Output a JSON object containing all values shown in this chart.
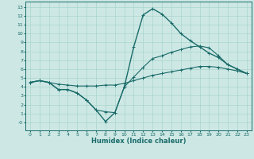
{
  "xlabel": "Humidex (Indice chaleur)",
  "bg_color": "#cde8e4",
  "line_color": "#1a6b6a",
  "grid_color": "#a8d4ce",
  "xlim": [
    -0.5,
    23.5
  ],
  "ylim": [
    -0.9,
    13.6
  ],
  "xticks": [
    0,
    1,
    2,
    3,
    4,
    5,
    6,
    7,
    8,
    9,
    10,
    11,
    12,
    13,
    14,
    15,
    16,
    17,
    18,
    19,
    20,
    21,
    22,
    23
  ],
  "yticks": [
    0,
    1,
    2,
    3,
    4,
    5,
    6,
    7,
    8,
    9,
    10,
    11,
    12,
    13
  ],
  "ytick_labels": [
    "-0",
    "1",
    "2",
    "3",
    "4",
    "5",
    "6",
    "7",
    "8",
    "9",
    "10",
    "11",
    "12",
    "13"
  ],
  "line_flat_x": [
    0,
    1,
    2,
    3,
    4,
    5,
    6,
    7,
    8,
    9,
    10,
    11,
    12,
    13,
    14,
    15,
    16,
    17,
    18,
    19,
    20,
    21,
    22,
    23
  ],
  "line_flat_y": [
    4.5,
    4.7,
    4.5,
    4.3,
    4.2,
    4.1,
    4.1,
    4.1,
    4.2,
    4.2,
    4.4,
    4.7,
    5.0,
    5.3,
    5.5,
    5.7,
    5.9,
    6.1,
    6.3,
    6.3,
    6.2,
    6.0,
    5.8,
    5.5
  ],
  "line_dip_x": [
    0,
    1,
    2,
    3,
    4,
    5,
    6,
    7,
    8,
    9,
    10,
    11,
    12,
    13,
    14,
    15,
    16,
    17,
    18,
    19,
    20,
    21,
    22,
    23
  ],
  "line_dip_y": [
    4.5,
    4.7,
    4.5,
    3.7,
    3.7,
    3.3,
    2.5,
    1.4,
    1.2,
    1.1,
    4.0,
    5.1,
    6.2,
    7.2,
    7.5,
    7.9,
    8.2,
    8.5,
    8.6,
    8.4,
    7.5,
    6.5,
    6.0,
    5.5
  ],
  "line_peak_x": [
    0,
    1,
    2,
    3,
    4,
    5,
    6,
    7,
    8,
    9,
    10,
    11,
    12,
    13,
    14,
    15,
    16,
    17,
    18,
    19,
    20,
    21,
    22,
    23
  ],
  "line_peak_y": [
    4.5,
    4.7,
    4.5,
    3.7,
    3.7,
    3.3,
    2.5,
    1.4,
    0.1,
    1.1,
    4.0,
    8.5,
    12.1,
    12.8,
    12.2,
    11.2,
    10.0,
    9.2,
    8.5,
    7.8,
    7.3,
    6.5,
    6.0,
    5.5
  ]
}
